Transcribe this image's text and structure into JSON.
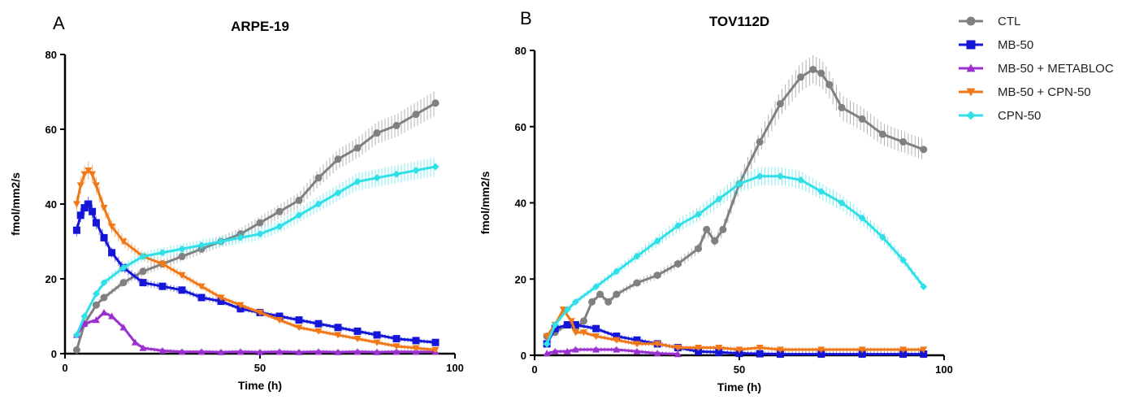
{
  "chart_data": [
    {
      "panel": "A",
      "type": "line",
      "title": "ARPE-19",
      "xlabel": "Time (h)",
      "ylabel": "fmol/mm2/s",
      "xlim": [
        0,
        100
      ],
      "ylim": [
        0,
        80
      ],
      "xticks": [
        0,
        50,
        100
      ],
      "yticks": [
        0,
        20,
        40,
        60,
        80
      ],
      "grid": false,
      "series": [
        {
          "name": "CTL",
          "color": "#808080",
          "marker": "circle",
          "x": [
            3,
            5,
            8,
            10,
            15,
            20,
            25,
            30,
            35,
            40,
            45,
            50,
            55,
            60,
            65,
            70,
            75,
            80,
            85,
            90,
            95
          ],
          "y": [
            1,
            8,
            13,
            15,
            19,
            22,
            24,
            26,
            28,
            30,
            32,
            35,
            38,
            41,
            47,
            52,
            55,
            59,
            61,
            64,
            67
          ]
        },
        {
          "name": "MB-50",
          "color": "#1515d8",
          "marker": "square",
          "x": [
            3,
            4,
            5,
            6,
            7,
            8,
            10,
            12,
            15,
            20,
            25,
            30,
            35,
            40,
            45,
            50,
            55,
            60,
            65,
            70,
            75,
            80,
            85,
            90,
            95
          ],
          "y": [
            33,
            37,
            39,
            40,
            38,
            35,
            31,
            27,
            23,
            19,
            18,
            17,
            15,
            14,
            12,
            11,
            10,
            9,
            8,
            7,
            6,
            5,
            4,
            3.5,
            3
          ]
        },
        {
          "name": "MB-50 + METABLOC",
          "color": "#9b30d0",
          "marker": "triangle-up",
          "x": [
            3,
            5,
            8,
            10,
            12,
            15,
            18,
            20,
            25,
            30,
            35,
            40,
            45,
            50,
            55,
            60,
            65,
            70,
            75,
            80,
            85,
            90,
            95
          ],
          "y": [
            5,
            8,
            9,
            11,
            10,
            7,
            3,
            1.5,
            0.8,
            0.5,
            0.5,
            0.4,
            0.5,
            0.4,
            0.5,
            0.4,
            0.5,
            0.4,
            0.5,
            0.4,
            0.5,
            0.5,
            0.5
          ]
        },
        {
          "name": "MB-50 + CPN-50",
          "color": "#f07818",
          "marker": "triangle-down",
          "x": [
            3,
            4,
            5,
            6,
            7,
            8,
            10,
            12,
            15,
            20,
            25,
            30,
            35,
            40,
            45,
            50,
            55,
            60,
            65,
            70,
            75,
            80,
            85,
            90,
            95
          ],
          "y": [
            40,
            45,
            48,
            49,
            48,
            45,
            39,
            34,
            30,
            26,
            24,
            21,
            18,
            15,
            13,
            11,
            9,
            7,
            6,
            5,
            4,
            3,
            2,
            1.5,
            1
          ]
        },
        {
          "name": "CPN-50",
          "color": "#30e0e8",
          "marker": "diamond",
          "x": [
            3,
            5,
            8,
            10,
            15,
            20,
            25,
            30,
            35,
            40,
            45,
            50,
            55,
            60,
            65,
            70,
            75,
            80,
            85,
            90,
            95
          ],
          "y": [
            5,
            10,
            16,
            19,
            23,
            26,
            27,
            28,
            29,
            30,
            31,
            32,
            34,
            37,
            40,
            43,
            46,
            47,
            48,
            49,
            50
          ]
        }
      ]
    },
    {
      "panel": "B",
      "type": "line",
      "title": "TOV112D",
      "xlabel": "Time (h)",
      "ylabel": "fmol/mm2/s",
      "xlim": [
        0,
        100
      ],
      "ylim": [
        0,
        80
      ],
      "xticks": [
        0,
        50,
        100
      ],
      "yticks": [
        0,
        20,
        40,
        60,
        80
      ],
      "grid": false,
      "series": [
        {
          "name": "CTL",
          "color": "#808080",
          "marker": "circle",
          "x": [
            3,
            5,
            8,
            10,
            12,
            14,
            16,
            18,
            20,
            25,
            30,
            35,
            40,
            42,
            44,
            46,
            50,
            55,
            60,
            65,
            68,
            70,
            72,
            75,
            80,
            85,
            90,
            95
          ],
          "y": [
            5,
            6,
            8,
            7,
            9,
            14,
            16,
            14,
            16,
            19,
            21,
            24,
            28,
            33,
            30,
            33,
            45,
            56,
            66,
            73,
            75,
            74,
            71,
            65,
            62,
            58,
            56,
            54
          ]
        },
        {
          "name": "MB-50",
          "color": "#1515d8",
          "marker": "square",
          "x": [
            3,
            5,
            8,
            10,
            15,
            20,
            25,
            30,
            35,
            40,
            45,
            50,
            55,
            60,
            70,
            80,
            90,
            95
          ],
          "y": [
            3,
            7,
            8,
            8,
            7,
            5,
            4,
            3,
            2,
            1,
            0.8,
            0.5,
            0.4,
            0.3,
            0.3,
            0.3,
            0.3,
            0.3
          ]
        },
        {
          "name": "MB-50 + METABLOC",
          "color": "#9b30d0",
          "marker": "triangle-up",
          "x": [
            3,
            5,
            8,
            10,
            15,
            20,
            25,
            30,
            35
          ],
          "y": [
            0.5,
            1,
            1,
            1.5,
            1.5,
            1.5,
            1,
            0.5,
            0.3
          ]
        },
        {
          "name": "MB-50 + CPN-50",
          "color": "#f07818",
          "marker": "triangle-down",
          "x": [
            3,
            5,
            7,
            9,
            10,
            12,
            15,
            20,
            25,
            30,
            35,
            40,
            45,
            50,
            55,
            60,
            70,
            80,
            90,
            95
          ],
          "y": [
            5,
            8,
            12,
            9,
            6,
            6,
            5,
            4,
            3,
            3,
            2,
            2,
            2,
            1.5,
            2,
            1.5,
            1.5,
            1.5,
            1.5,
            1.5
          ]
        },
        {
          "name": "CPN-50",
          "color": "#30e0e8",
          "marker": "diamond",
          "x": [
            3,
            5,
            8,
            10,
            15,
            20,
            25,
            30,
            35,
            40,
            45,
            50,
            55,
            60,
            65,
            70,
            75,
            80,
            85,
            90,
            95
          ],
          "y": [
            3,
            8,
            12,
            14,
            18,
            22,
            26,
            30,
            34,
            37,
            41,
            45,
            47,
            47,
            46,
            43,
            40,
            36,
            31,
            25,
            18
          ]
        }
      ]
    }
  ],
  "legend": {
    "placement": "top-right",
    "entries": [
      {
        "label": "CTL",
        "color": "#808080",
        "marker": "circle"
      },
      {
        "label": "MB-50",
        "color": "#1515d8",
        "marker": "square"
      },
      {
        "label": "MB-50 + METABLOC",
        "color": "#9b30d0",
        "marker": "triangle-up"
      },
      {
        "label": "MB-50 + CPN-50",
        "color": "#f07818",
        "marker": "triangle-down"
      },
      {
        "label": "CPN-50",
        "color": "#30e0e8",
        "marker": "diamond"
      }
    ]
  }
}
